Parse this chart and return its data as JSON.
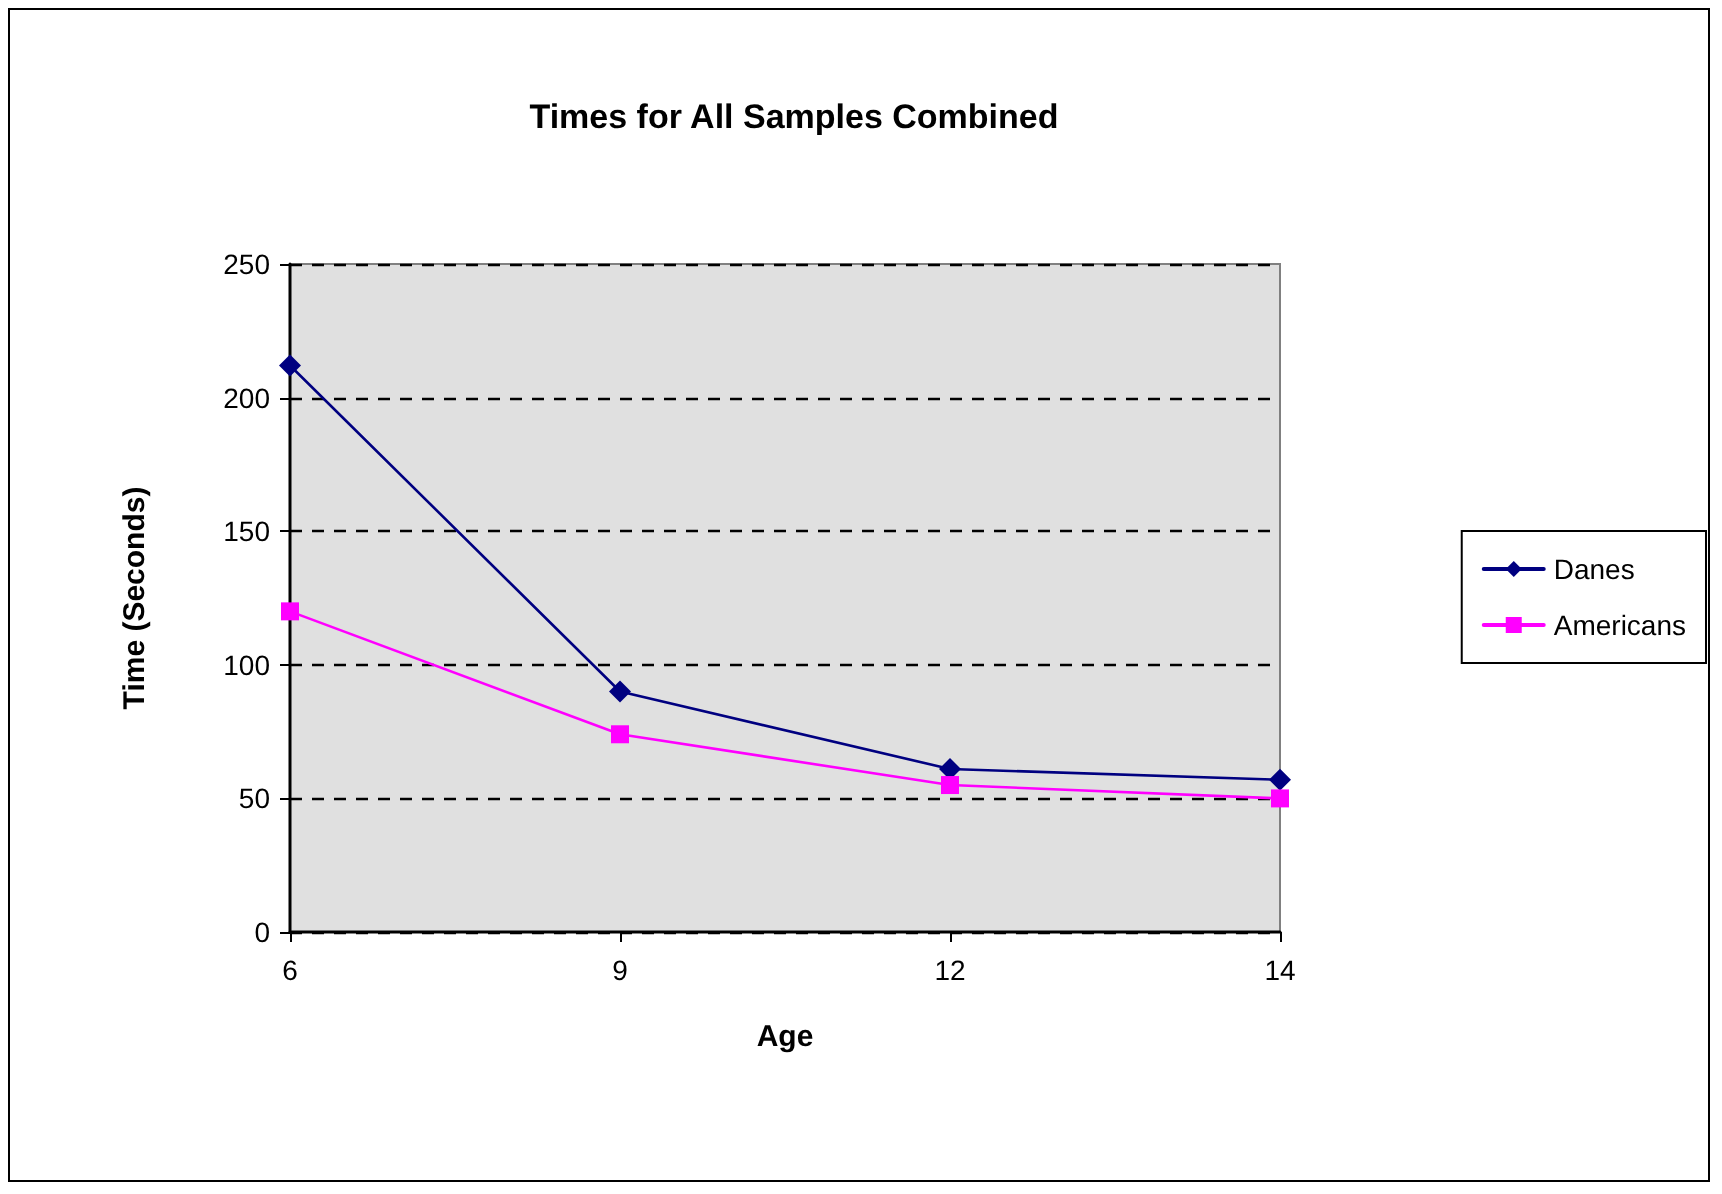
{
  "chart_data": {
    "type": "line",
    "title": "Times for All Samples Combined",
    "xlabel": "Age",
    "ylabel": "Time (Seconds)",
    "categories": [
      "6",
      "9",
      "12",
      "14"
    ],
    "series": [
      {
        "name": "Danes",
        "color": "#000080",
        "marker": "diamond",
        "values": [
          212,
          90,
          61,
          57
        ]
      },
      {
        "name": "Americans",
        "color": "#ff00ff",
        "marker": "square",
        "values": [
          120,
          74,
          55,
          50
        ]
      }
    ],
    "ylim": [
      0,
      250
    ],
    "yticks": [
      0,
      50,
      100,
      150,
      200,
      250
    ],
    "grid": "y",
    "legend": "right",
    "line_style": "solid"
  }
}
